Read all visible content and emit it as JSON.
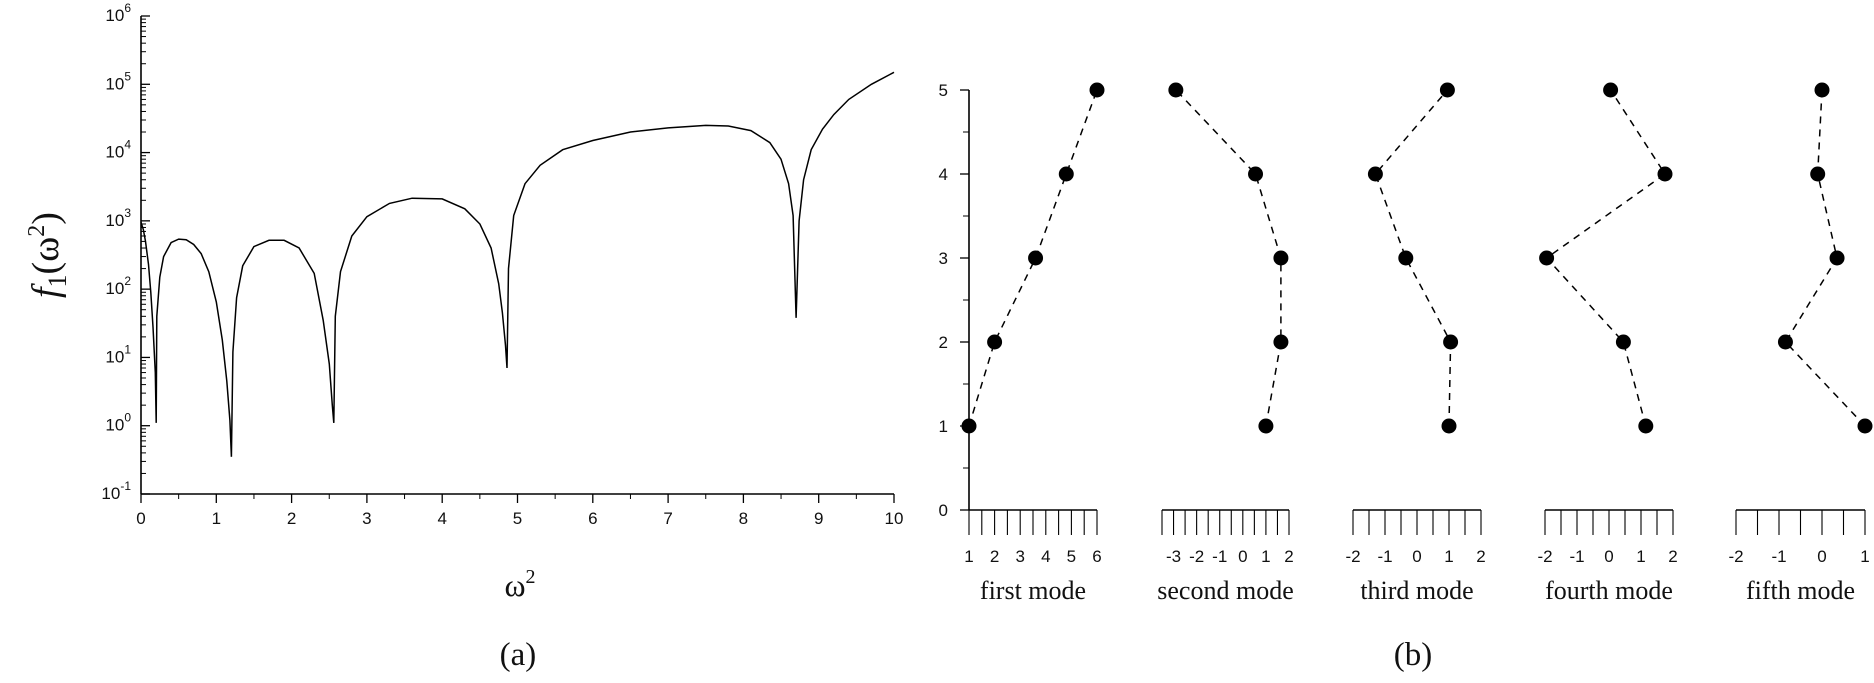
{
  "chart_data": [
    {
      "type": "line",
      "panel_label": "(a)",
      "xlabel": "ω",
      "xlabel_sup": "2",
      "ylabel_main": "f",
      "ylabel_sub": "1",
      "ylabel_arg": "(ω",
      "ylabel_arg_sup": "2",
      "ylabel_close": ")",
      "xlim": [
        0,
        10
      ],
      "ylim_exponent": [
        -1,
        6
      ],
      "y_scale": "log",
      "x_ticks": [
        "0",
        "1",
        "2",
        "3",
        "4",
        "5",
        "6",
        "7",
        "8",
        "9",
        "10"
      ],
      "y_ticks": [
        {
          "base": "10",
          "exp": "-1"
        },
        {
          "base": "10",
          "exp": "0"
        },
        {
          "base": "10",
          "exp": "1"
        },
        {
          "base": "10",
          "exp": "2"
        },
        {
          "base": "10",
          "exp": "3"
        },
        {
          "base": "10",
          "exp": "4"
        },
        {
          "base": "10",
          "exp": "5"
        },
        {
          "base": "10",
          "exp": "6"
        }
      ],
      "series": [
        {
          "x": [
            0,
            0.03,
            0.06,
            0.1,
            0.13,
            0.16,
            0.19,
            0.202,
            0.21,
            0.25,
            0.3,
            0.4,
            0.5,
            0.6,
            0.7,
            0.8,
            0.9,
            1.0,
            1.08,
            1.14,
            1.18,
            1.2,
            1.22,
            1.27,
            1.35,
            1.5,
            1.7,
            1.9,
            2.1,
            2.3,
            2.42,
            2.5,
            2.54,
            2.56,
            2.58,
            2.65,
            2.8,
            3.0,
            3.3,
            3.6,
            4.0,
            4.3,
            4.5,
            4.65,
            4.75,
            4.8,
            4.84,
            4.86,
            4.88,
            4.95,
            5.1,
            5.3,
            5.6,
            6.0,
            6.5,
            7.0,
            7.5,
            7.8,
            8.1,
            8.35,
            8.5,
            8.6,
            8.66,
            8.7,
            8.74,
            8.8,
            8.9,
            9.05,
            9.2,
            9.4,
            9.7,
            10.0
          ],
          "y": [
            950,
            750,
            500,
            230,
            90,
            28,
            6,
            1.1,
            40,
            150,
            300,
            480,
            540,
            530,
            450,
            330,
            180,
            65,
            18,
            4.5,
            1.2,
            0.35,
            12,
            75,
            220,
            420,
            520,
            520,
            400,
            170,
            35,
            8,
            2,
            1.1,
            40,
            180,
            600,
            1150,
            1800,
            2150,
            2100,
            1500,
            900,
            400,
            120,
            45,
            15,
            7,
            200,
            1200,
            3500,
            6500,
            11000,
            15000,
            20000,
            23000,
            25000,
            24500,
            21000,
            14000,
            8000,
            3500,
            1200,
            38,
            1000,
            4000,
            11000,
            22000,
            36000,
            60000,
            100000,
            150000
          ]
        }
      ]
    },
    {
      "type": "scatter",
      "panel_label": "(b)",
      "ylim": [
        0,
        5
      ],
      "y_ticks": [
        "0",
        "1",
        "2",
        "3",
        "4",
        "5"
      ],
      "y": [
        1,
        2,
        3,
        4,
        5
      ],
      "series": [
        {
          "name": "first mode",
          "x": [
            1.0,
            2.0,
            3.6,
            4.8,
            6.0
          ],
          "xlim": [
            1,
            6
          ],
          "x_ticks": [
            "1",
            "2",
            "3",
            "4",
            "5",
            "6"
          ],
          "minor_step": 0.5
        },
        {
          "name": "second mode",
          "x": [
            1.0,
            1.65,
            1.65,
            0.55,
            -2.9
          ],
          "xlim": [
            -3.5,
            2.0
          ],
          "x_ticks": [
            "-3",
            "-2",
            "-1",
            "0",
            "1",
            "2"
          ],
          "minor_step": 0.5
        },
        {
          "name": "third mode",
          "x": [
            1.0,
            1.05,
            -0.35,
            -1.3,
            0.95
          ],
          "xlim": [
            -2,
            2
          ],
          "x_ticks": [
            "-2",
            "-1",
            "0",
            "1",
            "2"
          ],
          "minor_step": 0.5
        },
        {
          "name": "fourth mode",
          "x": [
            1.15,
            0.45,
            -1.95,
            1.75,
            0.05
          ],
          "xlim": [
            -2,
            2
          ],
          "x_ticks": [
            "-2",
            "-1",
            "0",
            "1",
            "2"
          ],
          "minor_step": 0.5
        },
        {
          "name": "fifth mode",
          "x": [
            1.0,
            -0.85,
            0.35,
            -0.1,
            0.0
          ],
          "xlim": [
            -2,
            1
          ],
          "x_ticks": [
            "-2",
            "-1",
            "0",
            "1"
          ],
          "minor_step": 0.5
        }
      ]
    }
  ]
}
